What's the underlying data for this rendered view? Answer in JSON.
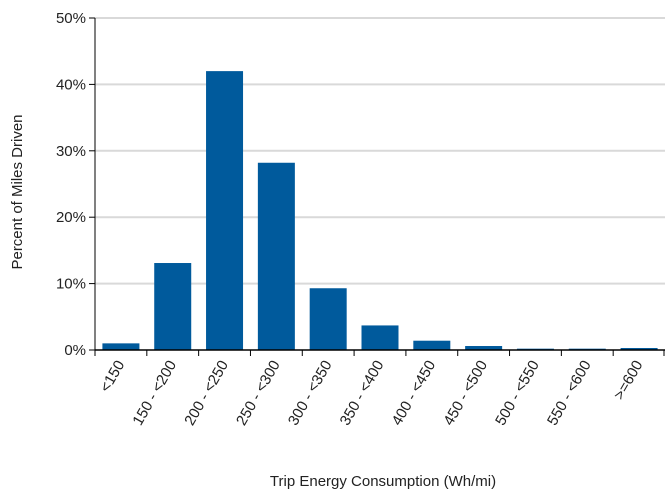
{
  "chart_data": {
    "type": "bar",
    "title": "",
    "xlabel": "Trip Energy Consumption (Wh/mi)",
    "ylabel": "Percent of Miles Driven",
    "categories": [
      "<150",
      "150 - <200",
      "200 - <250",
      "250 - <300",
      "300 - <350",
      "350 - <400",
      "400 - <450",
      "450 - <500",
      "500 - <550",
      "550 - <600",
      ">=600"
    ],
    "values": [
      1.0,
      13.1,
      42.0,
      28.2,
      9.3,
      3.7,
      1.4,
      0.6,
      0.2,
      0.2,
      0.3
    ],
    "ylim": [
      0,
      50
    ],
    "yticks": [
      0,
      10,
      20,
      30,
      40,
      50
    ],
    "ytick_labels": [
      "0%",
      "10%",
      "20%",
      "30%",
      "40%",
      "50%"
    ],
    "grid": true,
    "legend": "none",
    "colors": {
      "bar": "#005a9c",
      "grid": "#d9d9d9",
      "axis": "#000000"
    }
  }
}
